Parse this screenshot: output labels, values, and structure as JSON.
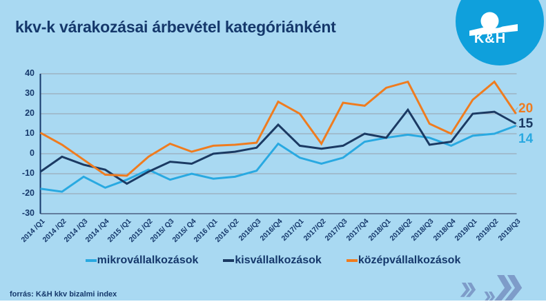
{
  "header": {
    "title": "kkv-k várakozásai árbevétel kategóriánként",
    "logo_text": "K&H"
  },
  "footer": {
    "source": "forrás: K&H kkv bizalmi index"
  },
  "colors": {
    "background": "#a9d9f2",
    "text_navy": "#15386b",
    "gridline": "#97a0ab",
    "logo_blue": "#0fa0dc",
    "chevron_blue": "#7e9cc9"
  },
  "chart_data": {
    "type": "line",
    "title": "kkv-k várakozásai árbevétel kategóriánként",
    "categories": [
      "2014 /Q1",
      "2014 /Q2",
      "2014 /Q3",
      "2014 /Q4",
      "2015 /Q1",
      "2015 /Q2",
      "2015/ Q3",
      "2015/ Q4",
      "2016 /Q1",
      "2016 /Q2",
      "2016/Q3",
      "2016/Q4",
      "2017/Q1",
      "2017/Q2",
      "2017/Q3",
      "2017/Q4",
      "2018/Q1",
      "2018/Q2",
      "2018/Q3",
      "2018/Q4",
      "2019/Q1",
      "2019/Q2",
      "2019/Q3"
    ],
    "series": [
      {
        "id": "mikro",
        "name": "mikrovállalkozások",
        "color": "#29a9e1",
        "values": [
          -17.5,
          -19,
          -11.5,
          -17,
          -13,
          -8,
          -13,
          -10,
          -12.5,
          -11.5,
          -8.5,
          5,
          -2,
          -5,
          -2,
          6,
          8,
          9.5,
          8,
          4,
          9,
          10,
          14
        ]
      },
      {
        "id": "kis",
        "name": "kisvállalkozások",
        "color": "#1b3a63",
        "values": [
          -9,
          -1.5,
          -5.5,
          -8,
          -15,
          -9,
          -4,
          -5,
          0,
          1,
          3,
          14.5,
          4,
          2.5,
          4,
          10,
          8,
          22,
          4.5,
          6,
          20,
          21,
          15
        ]
      },
      {
        "id": "kozep",
        "name": "középvállalkozások",
        "color": "#ef7c1f",
        "values": [
          10.5,
          4.5,
          -3,
          -10.5,
          -11,
          -1.5,
          5,
          1,
          4,
          4.5,
          5.5,
          26,
          20,
          5,
          25.5,
          24,
          33,
          36,
          15,
          10,
          27,
          36,
          20
        ]
      }
    ],
    "ylim": [
      -30,
      40
    ],
    "yticks": [
      40,
      30,
      20,
      10,
      0,
      -10,
      -20,
      -30
    ],
    "grid": true,
    "legend_position": "bottom",
    "end_labels": [
      {
        "text": "20",
        "series": "középvállalkozások"
      },
      {
        "text": "15",
        "series": "kisvállalkozások"
      },
      {
        "text": "14",
        "series": "mikrovállalkozások"
      }
    ]
  }
}
